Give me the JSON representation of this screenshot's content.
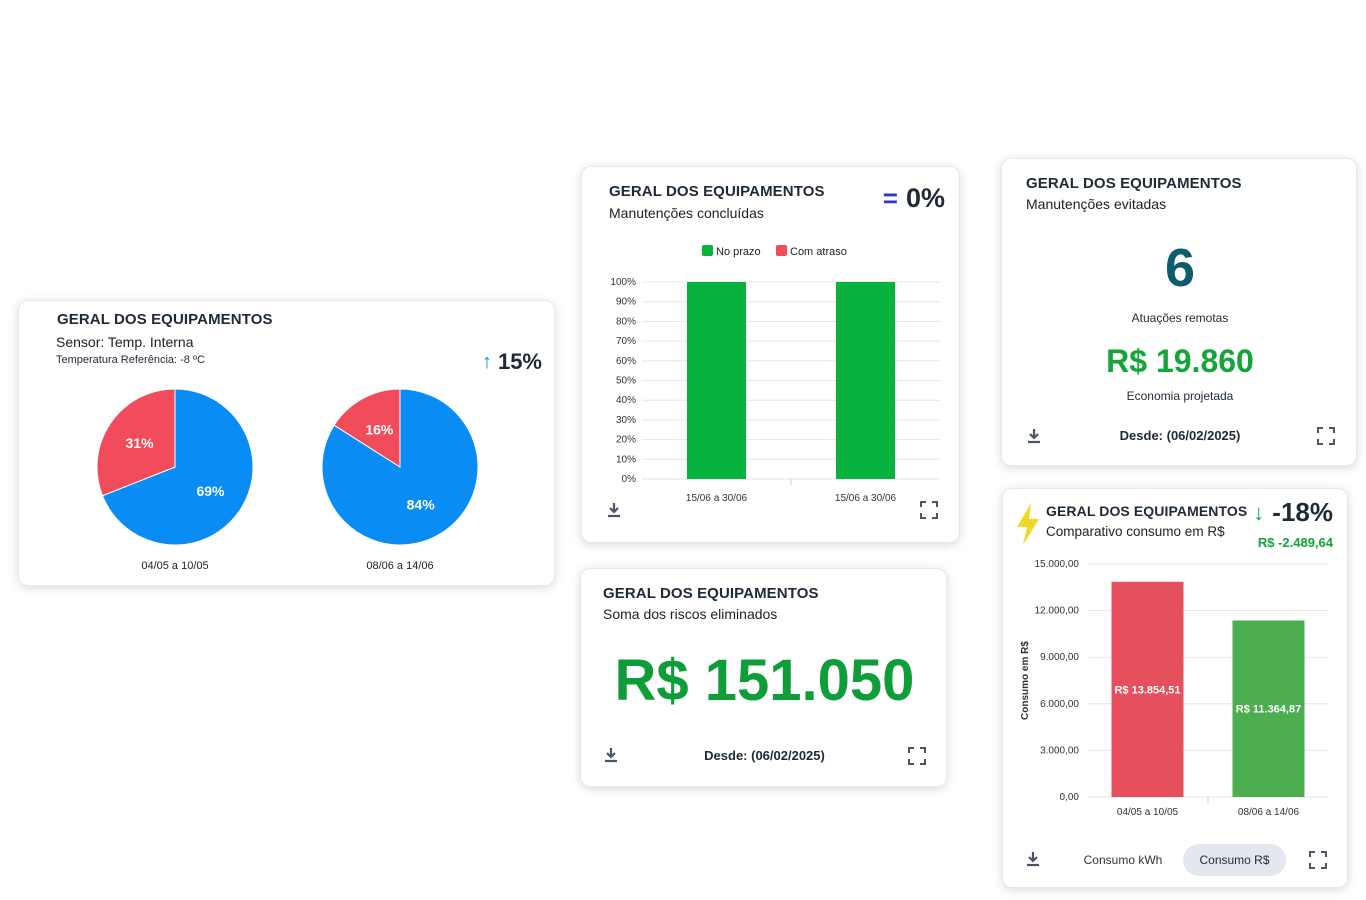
{
  "card_temp": {
    "title": "GERAL DOS EQUIPAMENTOS",
    "subtitle": "Sensor: Temp. Interna",
    "reference": "Temperatura Referência: -8 ºC",
    "trend_value": "15%",
    "trend_icon": "arrow-up-icon",
    "colors": {
      "blue": "#0a8cf5",
      "red": "#f24b5b"
    }
  },
  "card_maint": {
    "title": "GERAL DOS EQUIPAMENTOS",
    "subtitle": "Manutenções concluídas",
    "trend_symbol": "=",
    "trend_value": "0%"
  },
  "card_avoided": {
    "title": "GERAL DOS EQUIPAMENTOS",
    "subtitle": "Manutenções evitadas",
    "count": "6",
    "count_label": "Atuações remotas",
    "savings": "R$ 19.860",
    "savings_label": "Economia projetada",
    "since": "Desde: (06/02/2025)"
  },
  "card_risks": {
    "title": "GERAL DOS EQUIPAMENTOS",
    "subtitle": "Soma dos riscos eliminados",
    "value": "R$ 151.050",
    "since": "Desde: (06/02/2025)"
  },
  "card_consumo": {
    "title": "GERAL DOS EQUIPAMENTOS",
    "subtitle": "Comparativo consumo em R$",
    "trend_value": "-18%",
    "trend_amount": "R$ -2.489,64",
    "tab_kwh": "Consumo kWh",
    "tab_brl": "Consumo R$",
    "active_tab": "Consumo R$"
  },
  "chart_data": [
    {
      "type": "pie",
      "title": "",
      "charts": [
        {
          "label": "04/05 a 10/05",
          "slices": [
            {
              "value": 69,
              "label": "69%",
              "color": "#0a8cf5"
            },
            {
              "value": 31,
              "label": "31%",
              "color": "#f24b5b"
            }
          ]
        },
        {
          "label": "08/06 a 14/06",
          "slices": [
            {
              "value": 84,
              "label": "84%",
              "color": "#0a8cf5"
            },
            {
              "value": 16,
              "label": "16%",
              "color": "#f24b5b"
            }
          ]
        }
      ]
    },
    {
      "type": "bar",
      "categories": [
        "15/06 a 30/06",
        "15/06 a 30/06"
      ],
      "series": [
        {
          "name": "No prazo",
          "color": "#08b23e",
          "values": [
            100,
            100
          ]
        },
        {
          "name": "Com atraso",
          "color": "#f24b5b",
          "values": [
            0,
            0
          ]
        }
      ],
      "yticks": [
        "0%",
        "10%",
        "20%",
        "30%",
        "40%",
        "50%",
        "60%",
        "70%",
        "80%",
        "90%",
        "100%"
      ],
      "ylim": [
        0,
        100
      ],
      "legend": "top-center"
    },
    {
      "type": "bar",
      "categories": [
        "04/05 a 10/05",
        "08/06 a 14/06"
      ],
      "values": [
        13854.51,
        11364.87
      ],
      "value_labels": [
        "R$ 13.854,51",
        "R$ 11.364,87"
      ],
      "colors": [
        "#e5505c",
        "#4cae4f"
      ],
      "ylabel": "Consumo em R$",
      "yticks": [
        "0,00",
        "3.000,00",
        "6.000,00",
        "9.000,00",
        "12.000,00",
        "15.000,00"
      ],
      "ylim": [
        0,
        15000
      ]
    }
  ]
}
